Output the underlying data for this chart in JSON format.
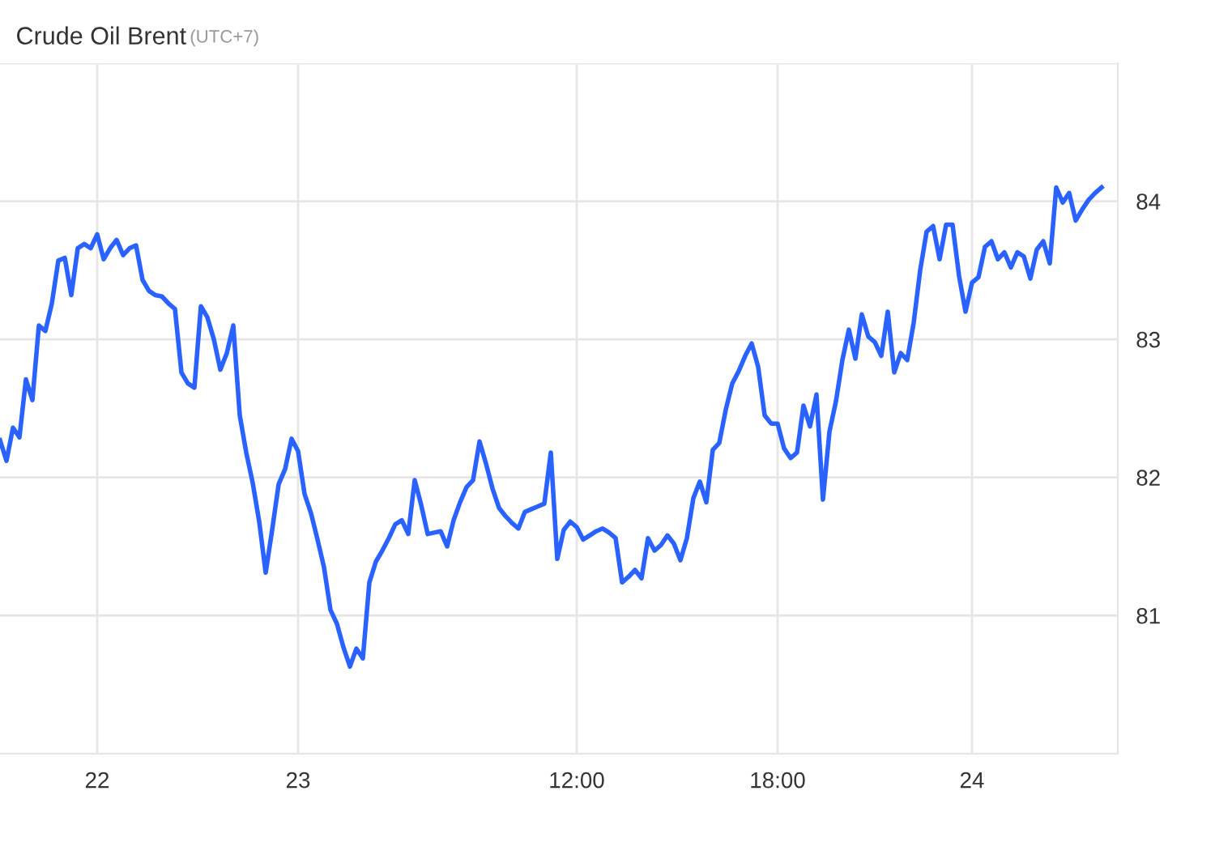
{
  "chart_data": {
    "type": "line",
    "title": "Crude Oil Brent",
    "subtitle": "(UTC+7)",
    "categories": [
      null,
      null,
      null,
      null,
      null,
      null,
      null,
      null,
      null,
      null,
      null,
      null,
      null,
      null,
      null,
      "22",
      null,
      null,
      null,
      null,
      null,
      null,
      null,
      null,
      null,
      null,
      null,
      null,
      null,
      null,
      null,
      null,
      null,
      null,
      null,
      null,
      null,
      null,
      null,
      null,
      null,
      null,
      null,
      null,
      null,
      null,
      "23",
      null,
      null,
      null,
      null,
      null,
      null,
      null,
      null,
      null,
      null,
      null,
      null,
      null,
      null,
      null,
      null,
      null,
      null,
      null,
      null,
      null,
      null,
      null,
      null,
      null,
      null,
      null,
      null,
      null,
      null,
      null,
      null,
      null,
      null,
      null,
      null,
      null,
      null,
      null,
      null,
      null,
      null,
      "12:00",
      null,
      null,
      null,
      null,
      null,
      null,
      null,
      null,
      null,
      null,
      null,
      null,
      null,
      null,
      null,
      null,
      null,
      null,
      null,
      null,
      null,
      null,
      null,
      null,
      null,
      null,
      null,
      null,
      null,
      null,
      "18:00",
      null,
      null,
      null,
      null,
      null,
      null,
      null,
      null,
      null,
      null,
      null,
      null,
      null,
      null,
      null,
      null,
      null,
      null,
      null,
      null,
      null,
      null,
      null,
      null,
      null,
      null,
      null,
      null,
      null,
      "24",
      null,
      null,
      null,
      null,
      null,
      null,
      null,
      null,
      null,
      null,
      null,
      null,
      null,
      null,
      null,
      null,
      null,
      null,
      null,
      null
    ],
    "series": [
      {
        "color": "#2962ff",
        "values": [
          82.27,
          82.12,
          82.36,
          82.29,
          82.71,
          82.56,
          83.1,
          83.06,
          83.26,
          83.57,
          83.59,
          83.32,
          83.66,
          83.69,
          83.66,
          83.76,
          83.58,
          83.66,
          83.72,
          83.61,
          83.66,
          83.68,
          83.43,
          83.35,
          83.32,
          83.31,
          83.26,
          83.22,
          82.76,
          82.68,
          82.65,
          83.24,
          83.16,
          83.0,
          82.78,
          82.9,
          83.1,
          82.45,
          82.18,
          81.96,
          81.68,
          81.31,
          81.62,
          81.95,
          82.06,
          82.28,
          82.19,
          81.88,
          81.74,
          81.55,
          81.35,
          81.04,
          80.94,
          80.77,
          80.63,
          80.76,
          80.69,
          81.24,
          81.39,
          81.47,
          81.56,
          81.66,
          81.69,
          81.59,
          81.98,
          81.8,
          81.59,
          81.6,
          81.61,
          81.5,
          81.69,
          81.82,
          81.93,
          81.98,
          82.26,
          82.1,
          81.92,
          81.78,
          81.72,
          81.67,
          81.63,
          81.75,
          81.77,
          81.79,
          81.81,
          82.18,
          81.41,
          81.62,
          81.68,
          81.64,
          81.55,
          81.58,
          81.61,
          81.63,
          81.6,
          81.56,
          81.24,
          81.28,
          81.33,
          81.27,
          81.56,
          81.47,
          81.51,
          81.58,
          81.52,
          81.4,
          81.56,
          81.85,
          81.97,
          81.82,
          82.2,
          82.25,
          82.49,
          82.68,
          82.77,
          82.88,
          82.97,
          82.8,
          82.45,
          82.39,
          82.39,
          82.21,
          82.14,
          82.18,
          82.52,
          82.37,
          82.6,
          81.84,
          82.33,
          82.55,
          82.85,
          83.07,
          82.86,
          83.18,
          83.02,
          82.98,
          82.88,
          83.2,
          82.76,
          82.9,
          82.85,
          83.12,
          83.5,
          83.78,
          83.82,
          83.58,
          83.83,
          83.83,
          83.46,
          83.2,
          83.41,
          83.45,
          83.67,
          83.71,
          83.58,
          83.63,
          83.52,
          83.63,
          83.6,
          83.44,
          83.65,
          83.71,
          83.55,
          84.1,
          83.99,
          84.06,
          83.86,
          83.94,
          84.01,
          84.06,
          84.1
        ]
      }
    ],
    "ylim": [
      80,
      85
    ],
    "yticks": [
      81,
      82,
      83,
      84,
      {
        "value": 85,
        "label": null
      }
    ],
    "grid": true,
    "marker": "none",
    "line_style": "solid"
  }
}
